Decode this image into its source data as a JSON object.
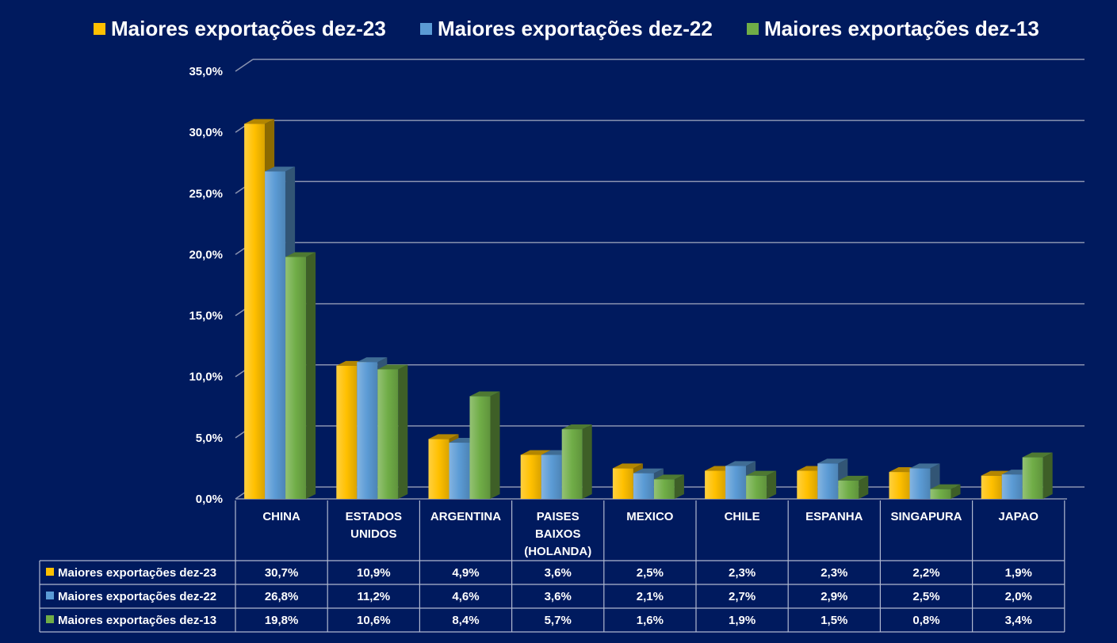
{
  "chart_data": {
    "type": "bar",
    "title": "",
    "xlabel": "",
    "ylabel": "",
    "ylim": [
      0,
      35
    ],
    "yticks": [
      "0,0%",
      "5,0%",
      "10,0%",
      "15,0%",
      "20,0%",
      "25,0%",
      "30,0%",
      "35,0%"
    ],
    "grid": true,
    "legend_position": "top",
    "categories": [
      [
        "CHINA"
      ],
      [
        "ESTADOS",
        "UNIDOS"
      ],
      [
        "ARGENTINA"
      ],
      [
        "PAISES",
        "BAIXOS",
        "(HOLANDA)"
      ],
      [
        "MEXICO"
      ],
      [
        "CHILE"
      ],
      [
        "ESPANHA"
      ],
      [
        "SINGAPURA"
      ],
      [
        "JAPAO"
      ]
    ],
    "series": [
      {
        "name": "Maiores exportações dez-23",
        "color": "#ffc000",
        "values": [
          30.7,
          10.9,
          4.9,
          3.6,
          2.5,
          2.3,
          2.3,
          2.2,
          1.9
        ],
        "labels": [
          "30,7%",
          "10,9%",
          "4,9%",
          "3,6%",
          "2,5%",
          "2,3%",
          "2,3%",
          "2,2%",
          "1,9%"
        ]
      },
      {
        "name": "Maiores exportações dez-22",
        "color": "#5b9bd5",
        "values": [
          26.8,
          11.2,
          4.6,
          3.6,
          2.1,
          2.7,
          2.9,
          2.5,
          2.0
        ],
        "labels": [
          "26,8%",
          "11,2%",
          "4,6%",
          "3,6%",
          "2,1%",
          "2,7%",
          "2,9%",
          "2,5%",
          "2,0%"
        ]
      },
      {
        "name": "Maiores exportações dez-13",
        "color": "#70ad47",
        "values": [
          19.8,
          10.6,
          8.4,
          5.7,
          1.6,
          1.9,
          1.5,
          0.8,
          3.4
        ],
        "labels": [
          "19,8%",
          "10,6%",
          "8,4%",
          "5,7%",
          "1,6%",
          "1,9%",
          "1,5%",
          "0,8%",
          "3,4%"
        ]
      }
    ]
  }
}
